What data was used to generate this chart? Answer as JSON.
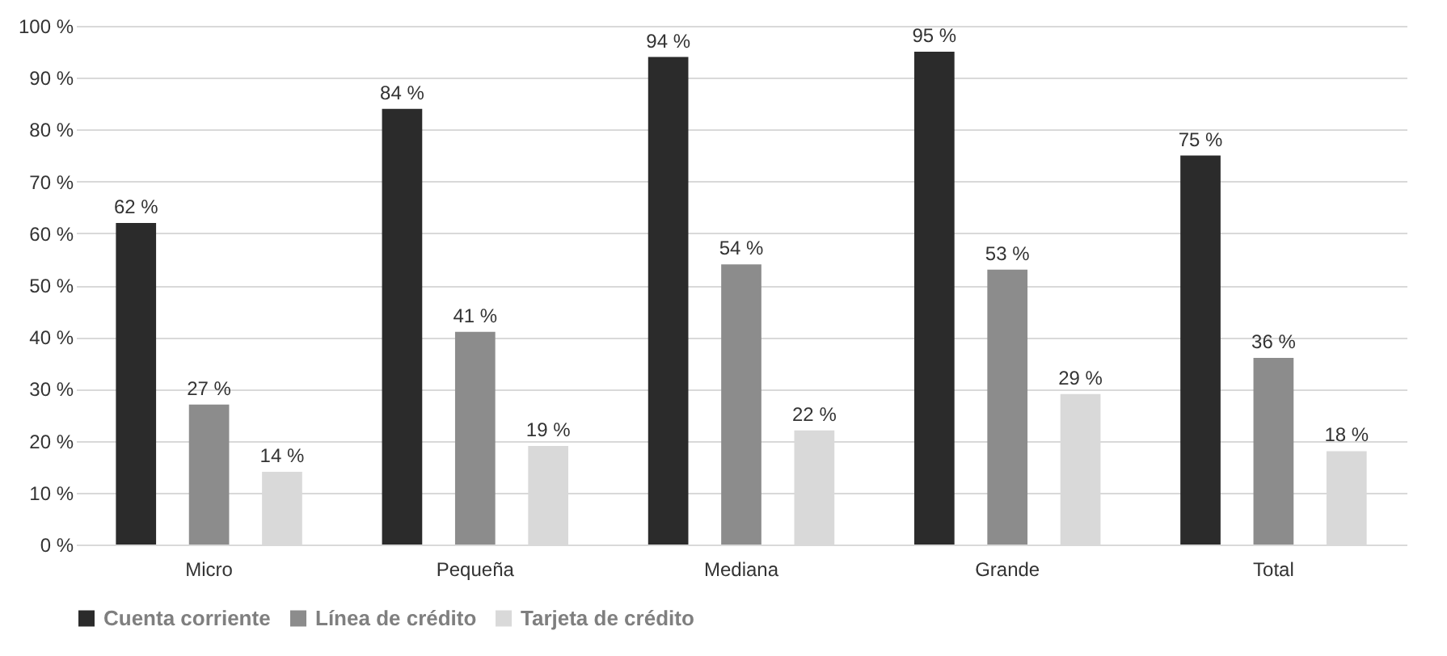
{
  "chart_data": {
    "type": "bar",
    "categories": [
      "Micro",
      "Pequeña",
      "Mediana",
      "Grande",
      "Total"
    ],
    "series": [
      {
        "name": "Cuenta corriente",
        "color": "#2b2b2b",
        "values": [
          62,
          84,
          94,
          95,
          75
        ],
        "value_labels": [
          "62 %",
          "84 %",
          "94 %",
          "95 %",
          "75 %"
        ]
      },
      {
        "name": "Línea de crédito",
        "color": "#8c8c8c",
        "values": [
          27,
          41,
          54,
          53,
          36
        ],
        "value_labels": [
          "27 %",
          "41 %",
          "54 %",
          "53 %",
          "36 %"
        ]
      },
      {
        "name": "Tarjeta de crédito",
        "color": "#d9d9d9",
        "values": [
          14,
          19,
          22,
          29,
          18
        ],
        "value_labels": [
          "14 %",
          "19 %",
          "22 %",
          "29 %",
          "18 %"
        ]
      }
    ],
    "ylim": [
      0,
      100
    ],
    "yticks": [
      {
        "value": 0,
        "label": "0 %"
      },
      {
        "value": 10,
        "label": "10 %"
      },
      {
        "value": 20,
        "label": "20 %"
      },
      {
        "value": 30,
        "label": "30 %"
      },
      {
        "value": 40,
        "label": "40 %"
      },
      {
        "value": 50,
        "label": "50 %"
      },
      {
        "value": 60,
        "label": "60 %"
      },
      {
        "value": 70,
        "label": "70 %"
      },
      {
        "value": 80,
        "label": "80 %"
      },
      {
        "value": 90,
        "label": "90 %"
      },
      {
        "value": 100,
        "label": "100 %"
      }
    ],
    "grid": "y",
    "legend": "bottom"
  }
}
